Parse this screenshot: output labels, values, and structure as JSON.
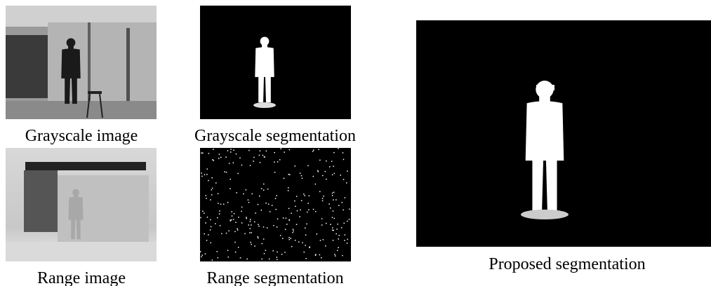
{
  "panels": [
    {
      "caption": "Grayscale image"
    },
    {
      "caption": "Grayscale segmentation"
    },
    {
      "caption": "Range image"
    },
    {
      "caption": "Range segmentation"
    },
    {
      "caption": "Proposed segmentation"
    }
  ]
}
